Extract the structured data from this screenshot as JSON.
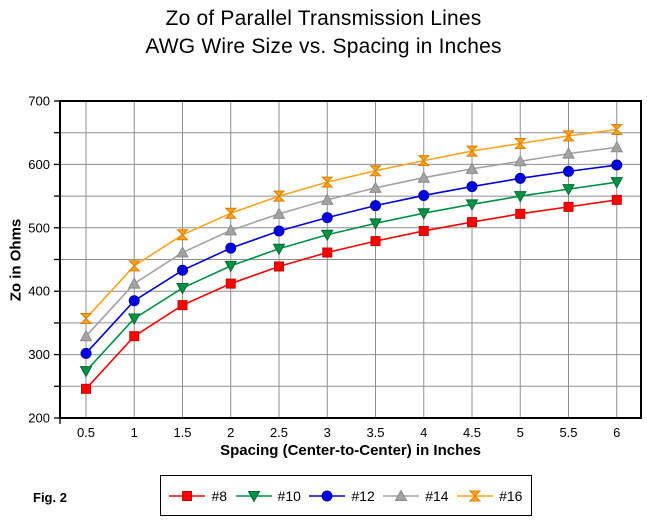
{
  "title": {
    "line1": "Zo of Parallel Transmission Lines",
    "line2": "AWG Wire Size vs. Spacing in Inches"
  },
  "figure_label": "Fig. 2",
  "chart_data": {
    "type": "line",
    "title": "Zo of Parallel Transmission Lines — AWG Wire Size vs. Spacing in Inches",
    "xlabel": "Spacing (Center-to-Center) in Inches",
    "ylabel": "Zo in Ohms",
    "x": [
      0.5,
      1,
      1.5,
      2,
      2.5,
      3,
      3.5,
      4,
      4.5,
      5,
      5.5,
      6
    ],
    "x_tick_labels": [
      "0.5",
      "1",
      "1.5",
      "2",
      "2.5",
      "3",
      "3.5",
      "4",
      "4.5",
      "5",
      "5.5",
      "6"
    ],
    "ylim": [
      200,
      700
    ],
    "y_major_ticks": [
      200,
      300,
      400,
      500,
      600,
      700
    ],
    "y_gridline_step": 50,
    "grid": true,
    "legend_position": "bottom",
    "colors": {
      "gridline": "#909090",
      "axis": "#000000"
    },
    "series": [
      {
        "name": "#8",
        "marker": "square",
        "color": "#FF0000",
        "edge": "#CC0000",
        "values": [
          246,
          329,
          378,
          412,
          439,
          461,
          479,
          495,
          509,
          522,
          533,
          544
        ]
      },
      {
        "name": "#10",
        "marker": "triangle-down",
        "color": "#009245",
        "edge": "#006B32",
        "values": [
          274,
          357,
          405,
          440,
          467,
          489,
          507,
          523,
          537,
          550,
          561,
          572
        ]
      },
      {
        "name": "#12",
        "marker": "circle",
        "color": "#0000E0",
        "edge": "#0000A8",
        "values": [
          302,
          385,
          433,
          468,
          495,
          516,
          535,
          551,
          565,
          578,
          589,
          599
        ]
      },
      {
        "name": "#14",
        "marker": "triangle-up",
        "color": "#A3A3A3",
        "edge": "#8C8C8C",
        "values": [
          329,
          412,
          461,
          496,
          522,
          544,
          563,
          579,
          593,
          605,
          617,
          627
        ]
      },
      {
        "name": "#16",
        "marker": "hourglass",
        "color": "#FFA41C",
        "edge": "#DD7E00",
        "values": [
          357,
          440,
          489,
          523,
          550,
          572,
          590,
          606,
          621,
          633,
          645,
          655
        ]
      }
    ]
  }
}
